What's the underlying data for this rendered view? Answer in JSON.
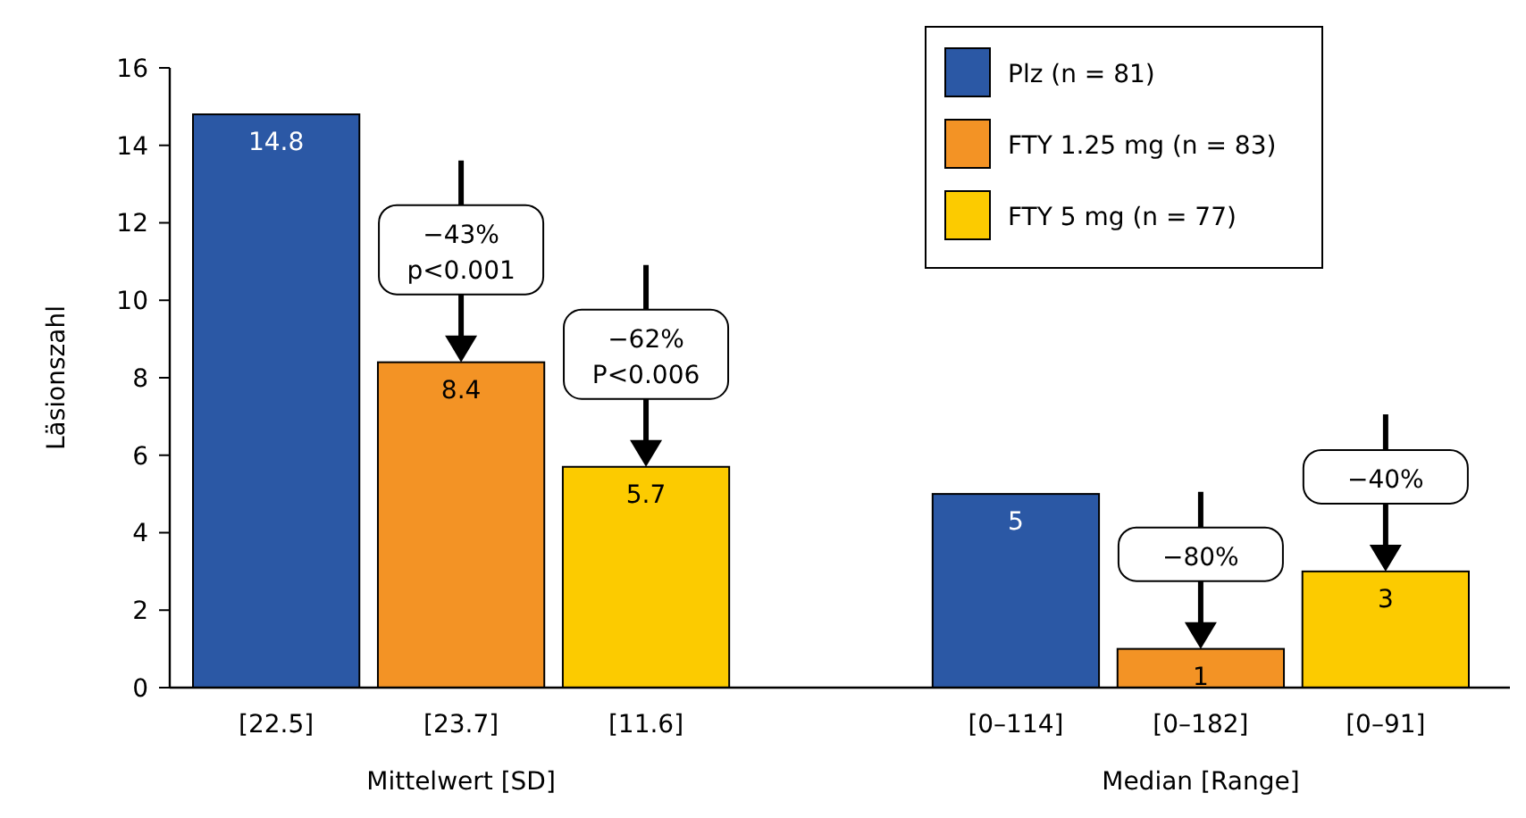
{
  "chart_data": {
    "type": "bar",
    "ylabel": "Läsionszahl",
    "categories": [
      "[22.5]",
      "[23.7]",
      "[11.6]",
      null,
      "[0–114]",
      "[0–182]",
      "[0–91]"
    ],
    "series": [
      {
        "name": "Plz (n = 81)",
        "color": "#2b58a5",
        "values": [
          14.8,
          null,
          null,
          null,
          5,
          null,
          null
        ]
      },
      {
        "name": "FTY 1.25 mg (n = 83)",
        "color": "#f39325",
        "values": [
          null,
          8.4,
          null,
          null,
          null,
          1,
          null
        ]
      },
      {
        "name": "FTY 5 mg (n = 77)",
        "color": "#fccb00",
        "values": [
          null,
          null,
          5.7,
          null,
          null,
          null,
          3
        ]
      }
    ],
    "ylim": [
      0,
      16
    ],
    "yticks": [
      0,
      2,
      4,
      6,
      8,
      10,
      12,
      14,
      16
    ],
    "grid": false,
    "legend": "top right",
    "data_labels": true,
    "annotations": [
      "Mittelwert [SD]",
      "Median [Range]",
      "−43%\np<0.001",
      "−62%\nP<0.006",
      "−80%",
      "−40%"
    ]
  }
}
